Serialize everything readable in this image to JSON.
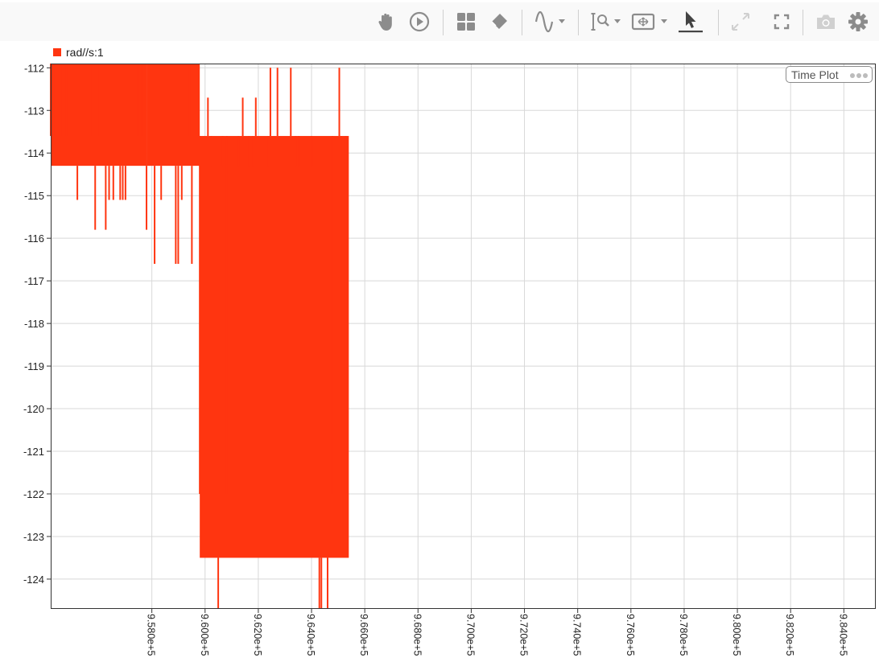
{
  "toolbar": {
    "buttons": [
      {
        "name": "pan-button",
        "icon": "hand-icon",
        "color": "#8c8c8c"
      },
      {
        "name": "play-button",
        "icon": "play-circle-icon",
        "color": "#8c8c8c"
      },
      {
        "name": "layout-button",
        "icon": "grid-icon",
        "color": "#8c8c8c"
      },
      {
        "name": "eraser-button",
        "icon": "eraser-icon",
        "color": "#8c8c8c"
      },
      {
        "name": "waveform-button",
        "icon": "sine-wave-icon",
        "color": "#8c8c8c"
      },
      {
        "name": "zoom-button",
        "icon": "zoom-icon",
        "color": "#8c8c8c"
      },
      {
        "name": "fit-button",
        "icon": "fit-frame-icon",
        "color": "#8c8c8c"
      },
      {
        "name": "select-button",
        "icon": "cursor-arrow-icon",
        "color": "#444444"
      },
      {
        "name": "expand-button",
        "icon": "expand-arrows-icon",
        "color": "#d0d0d0"
      },
      {
        "name": "fullscreen-button",
        "icon": "fullscreen-icon",
        "color": "#8c8c8c"
      },
      {
        "name": "snapshot-button",
        "icon": "camera-icon",
        "color": "#d0d0d0"
      },
      {
        "name": "settings-button",
        "icon": "gear-icon",
        "color": "#8c8c8c"
      }
    ]
  },
  "legend": {
    "label": "rad//s:1",
    "color": "#ff3510"
  },
  "time_plot": {
    "label": "Time Plot",
    "icon": "more-dots-icon"
  },
  "chart_data": {
    "type": "line",
    "grid": true,
    "legend_position": "top-left",
    "series": [
      {
        "name": "rad//s:1",
        "color": "#ff3510"
      }
    ],
    "xlim": [
      954200,
      985200
    ],
    "ylim": [
      -124.7,
      -111.9
    ],
    "x_ticks": [
      958000,
      960000,
      962000,
      964000,
      966000,
      968000,
      970000,
      972000,
      974000,
      976000,
      978000,
      980000,
      982000,
      984000
    ],
    "x_tick_labels": [
      "9.580e+5",
      "9.600e+5",
      "9.620e+5",
      "9.640e+5",
      "9.660e+5",
      "9.680e+5",
      "9.700e+5",
      "9.720e+5",
      "9.740e+5",
      "9.760e+5",
      "9.780e+5",
      "9.800e+5",
      "9.820e+5",
      "9.840e+5"
    ],
    "y_ticks": [
      -112,
      -113,
      -114,
      -115,
      -116,
      -117,
      -118,
      -119,
      -120,
      -121,
      -122,
      -123,
      -124
    ],
    "y_tick_labels": [
      "-112",
      "-113",
      "-114",
      "-115",
      "-116",
      "-117",
      "-118",
      "-119",
      "-120",
      "-121",
      "-122",
      "-123",
      "-124"
    ],
    "segments": [
      {
        "x_start": 954200,
        "x_end": 957800,
        "range": [
          -114.3,
          -111.9
        ],
        "spikes": [
          -115.8,
          -115.1,
          -113.6
        ]
      },
      {
        "x_start": 957800,
        "x_end": 959800,
        "range": [
          -114.3,
          -111.9
        ],
        "spikes": [
          -116.6,
          -115.8,
          -115.1,
          -113.6
        ]
      },
      {
        "x_start": 959800,
        "x_end": 965400,
        "range": [
          -123.5,
          -113.6
        ],
        "spikes": [
          -124.7,
          -112.7,
          -112.0,
          -114.3,
          -122.0
        ]
      }
    ]
  }
}
